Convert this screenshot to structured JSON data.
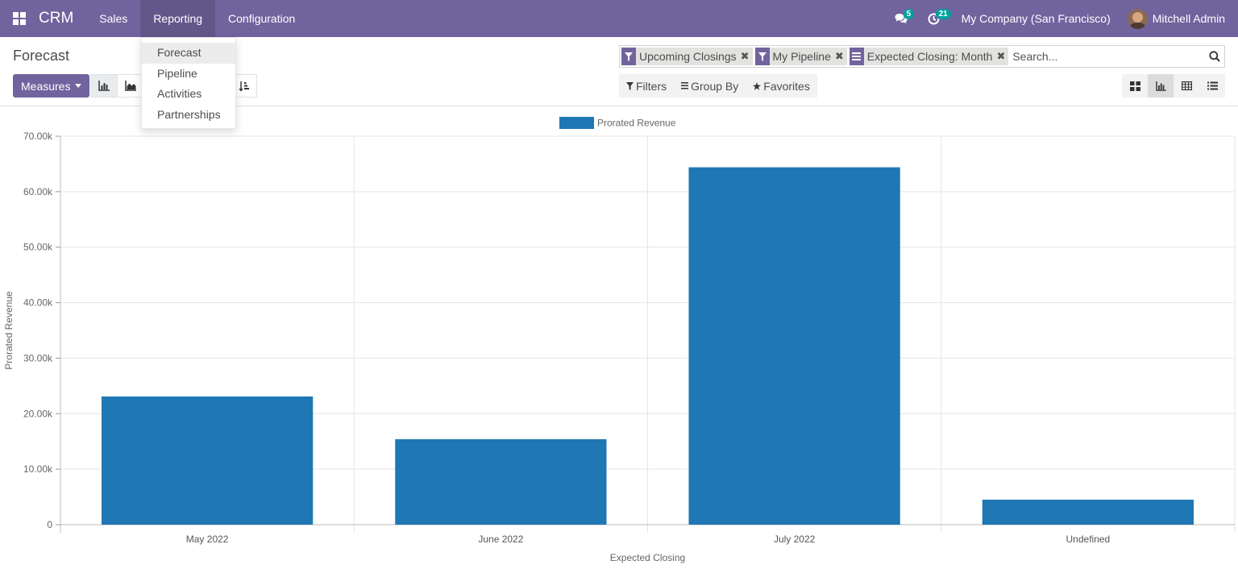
{
  "navbar": {
    "app_name": "CRM",
    "menu": [
      "Sales",
      "Reporting",
      "Configuration"
    ],
    "messages_badge": "5",
    "activities_badge": "21",
    "company": "My Company (San Francisco)",
    "user": "Mitchell Admin"
  },
  "reporting_menu": [
    "Forecast",
    "Pipeline",
    "Activities",
    "Partnerships"
  ],
  "page": {
    "title": "Forecast",
    "measures_label": "Measures"
  },
  "search": {
    "facets": [
      {
        "icon": "filter-icon",
        "label": "Upcoming Closings"
      },
      {
        "icon": "filter-icon",
        "label": "My Pipeline"
      },
      {
        "icon": "group-by-icon",
        "label": "Expected Closing: Month"
      }
    ],
    "placeholder": "Search..."
  },
  "filter_bar": {
    "filters": "Filters",
    "group_by": "Group By",
    "favorites": "Favorites"
  },
  "colors": {
    "navbar": "#71639e",
    "bar": "#1f77b4",
    "badge": "#00a09d"
  },
  "chart_data": {
    "type": "bar",
    "categories": [
      "May 2022",
      "June 2022",
      "July 2022",
      "Undefined"
    ],
    "series": [
      {
        "name": "Prorated Revenue",
        "values": [
          23100,
          15400,
          64400,
          4500
        ]
      }
    ],
    "xlabel": "Expected Closing",
    "ylabel": "Prorated Revenue",
    "ylim": [
      0,
      70000
    ],
    "yticks": [
      0,
      10000,
      20000,
      30000,
      40000,
      50000,
      60000,
      70000
    ],
    "ytick_labels": [
      "0",
      "10.00k",
      "20.00k",
      "30.00k",
      "40.00k",
      "50.00k",
      "60.00k",
      "70.00k"
    ],
    "legend": "top-center",
    "grid": true
  }
}
